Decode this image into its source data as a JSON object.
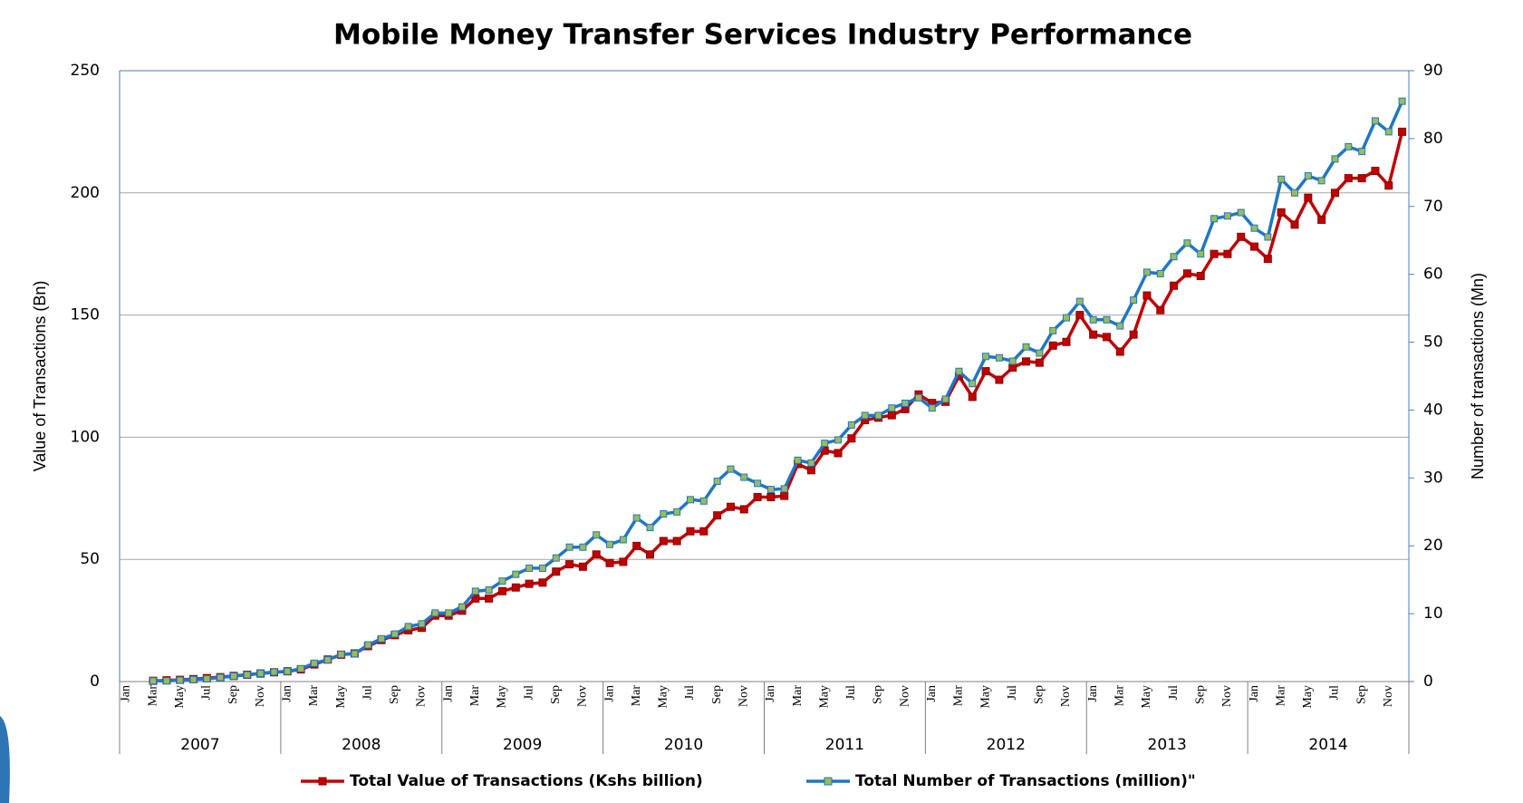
{
  "chart_data": {
    "type": "line",
    "title": "Mobile Money Transfer Services Industry Performance",
    "y_label": "Value  of Transactions (Bn)",
    "y2_label": "Number of transactions (Mn)",
    "categories": [
      "Jan",
      null,
      "Mar",
      null,
      "May",
      null,
      "Jul",
      null,
      "Sep",
      null,
      "Nov",
      null,
      "Jan",
      null,
      "Mar",
      null,
      "May",
      null,
      "Jul",
      null,
      "Sep",
      null,
      "Nov",
      null,
      "Jan",
      null,
      "Mar",
      null,
      "May",
      null,
      "Jul",
      null,
      "Sep",
      null,
      "Nov",
      null,
      "Jan",
      null,
      "Mar",
      null,
      "May",
      null,
      "Jul",
      null,
      "Sep",
      null,
      "Nov",
      null,
      "Jan",
      null,
      "Mar",
      null,
      "May",
      null,
      "Jul",
      null,
      "Sep",
      null,
      "Nov",
      null,
      "Jan",
      null,
      "Mar",
      null,
      "May",
      null,
      "Jul",
      null,
      "Sep",
      null,
      "Nov",
      null,
      "Jan",
      null,
      "Mar",
      null,
      "May",
      null,
      "Jul",
      null,
      "Sep",
      null,
      "Nov",
      null,
      "Jan",
      null,
      "Mar",
      null,
      "May",
      null,
      "Jul",
      null,
      "Sep",
      null,
      "Nov",
      null
    ],
    "years": [
      "2007",
      "2008",
      "2009",
      "2010",
      "2011",
      "2012",
      "2013",
      "2014"
    ],
    "series": [
      {
        "name": "Total Value of Transactions (Kshs billion)",
        "color": "#c00000",
        "marker_color": "#c00000",
        "axis": "y",
        "values": [
          null,
          null,
          0.3,
          0.5,
          0.7,
          1.0,
          1.4,
          1.8,
          2.3,
          2.8,
          3.3,
          3.8,
          4.2,
          5.0,
          7.0,
          9.0,
          11.0,
          11.5,
          14.5,
          17.0,
          19.0,
          21.0,
          22.0,
          27.0,
          27.0,
          29.0,
          34.0,
          34.0,
          37.0,
          38.5,
          40.0,
          40.5,
          45.0,
          48.0,
          47.0,
          52.0,
          48.5,
          49.0,
          55.5,
          52.0,
          57.5,
          57.5,
          61.5,
          61.5,
          68.0,
          71.5,
          70.5,
          75.5,
          75.5,
          76.0,
          89.0,
          86.5,
          94.5,
          93.5,
          99.5,
          107.0,
          108.0,
          109.0,
          111.5,
          117.5,
          114.0,
          114.5,
          125.0,
          116.5,
          127.0,
          123.5,
          128.5,
          131.0,
          130.5,
          137.5,
          139.0,
          150.0,
          142,
          141,
          135,
          142,
          158,
          152,
          162,
          167,
          166,
          175,
          175,
          182,
          178,
          173,
          192,
          187,
          198,
          189,
          200,
          206,
          206,
          209,
          203,
          225
        ]
      },
      {
        "name": "Total Number of Transactions (million)\"",
        "color": "#1f77c4",
        "marker_color": "#9bbb59",
        "axis": "y2",
        "values": [
          null,
          null,
          0.1,
          0.1,
          0.2,
          0.3,
          0.4,
          0.6,
          0.8,
          1.0,
          1.2,
          1.4,
          1.5,
          1.9,
          2.7,
          3.2,
          4.0,
          4.1,
          5.4,
          6.3,
          7.0,
          8.1,
          8.5,
          10.1,
          10.1,
          11.0,
          13.3,
          13.5,
          14.8,
          15.8,
          16.7,
          16.7,
          18.2,
          19.8,
          19.8,
          21.6,
          20.2,
          20.9,
          24.1,
          22.7,
          24.7,
          25.0,
          26.8,
          26.6,
          29.5,
          31.3,
          30.1,
          29.2,
          28.3,
          28.4,
          32.6,
          32.2,
          35.1,
          35.6,
          37.8,
          39.2,
          39.2,
          40.3,
          41.0,
          41.8,
          40.3,
          41.6,
          45.7,
          43.9,
          47.9,
          47.7,
          47.2,
          49.3,
          48.4,
          51.7,
          53.6,
          56.0,
          53.3,
          53.3,
          52.4,
          56.2,
          60.3,
          60.1,
          62.6,
          64.6,
          63.0,
          68.2,
          68.6,
          69.1,
          66.8,
          65.5,
          74.0,
          72.0,
          74.5,
          73.8,
          77.0,
          78.8,
          78.1,
          82.6,
          81.0,
          85.5
        ]
      }
    ],
    "ylim": [
      0,
      250
    ],
    "yticks": [
      0,
      50,
      100,
      150,
      200,
      250
    ],
    "y2lim": [
      0,
      90
    ],
    "y2ticks": [
      0,
      10,
      20,
      30,
      40,
      50,
      60,
      70,
      80,
      90
    ],
    "grid": true,
    "legend": "bottom"
  }
}
